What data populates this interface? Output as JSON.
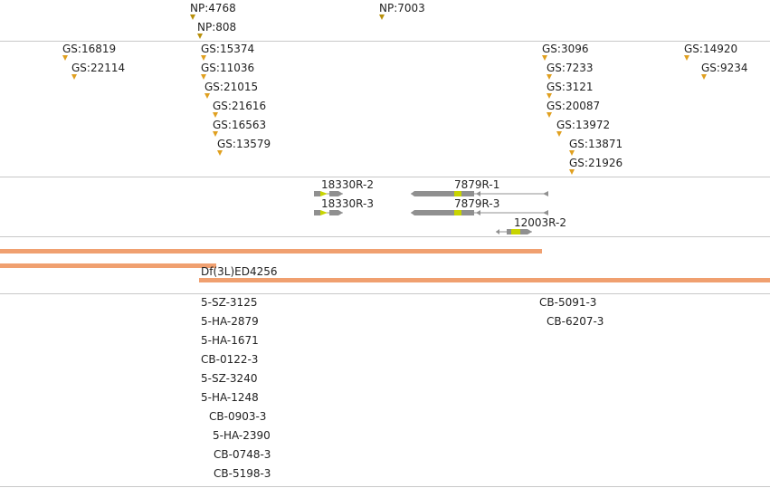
{
  "colors": {
    "np": "#b8900c",
    "gs": "#e0a020",
    "deficiency": "#f0a070",
    "insertion": "#e8684a",
    "gene_body": "#909090",
    "gene_exon": "#c8d400",
    "separator": "#c8c8c8"
  },
  "tracks": {
    "np": {
      "items": [
        {
          "label": "NP:4768"
        },
        {
          "label": "NP:808"
        },
        {
          "label": "NP:7003"
        }
      ]
    },
    "gs": {
      "items": [
        {
          "label": "GS:16819"
        },
        {
          "label": "GS:22114"
        },
        {
          "label": "GS:15374"
        },
        {
          "label": "GS:11036"
        },
        {
          "label": "GS:21015"
        },
        {
          "label": "GS:21616"
        },
        {
          "label": "GS:16563"
        },
        {
          "label": "GS:13579"
        },
        {
          "label": "GS:3096"
        },
        {
          "label": "GS:7233"
        },
        {
          "label": "GS:3121"
        },
        {
          "label": "GS:20087"
        },
        {
          "label": "GS:13972"
        },
        {
          "label": "GS:13871"
        },
        {
          "label": "GS:21926"
        },
        {
          "label": "GS:14920"
        },
        {
          "label": "GS:9234"
        }
      ]
    },
    "transcripts": {
      "items": [
        {
          "label": "18330R-2"
        },
        {
          "label": "18330R-3"
        },
        {
          "label": "7879R-1"
        },
        {
          "label": "7879R-3"
        },
        {
          "label": "12003R-2"
        }
      ]
    },
    "deficiencies": {
      "items": [
        {
          "label": ""
        },
        {
          "label": ""
        },
        {
          "label": "Df(3L)ED4256"
        }
      ]
    },
    "insertions": {
      "items": [
        {
          "label": "5-SZ-3125"
        },
        {
          "label": "5-HA-2879"
        },
        {
          "label": "5-HA-1671"
        },
        {
          "label": "CB-0122-3"
        },
        {
          "label": "5-SZ-3240"
        },
        {
          "label": "5-HA-1248"
        },
        {
          "label": "CB-0903-3"
        },
        {
          "label": "5-HA-2390"
        },
        {
          "label": "CB-0748-3"
        },
        {
          "label": "CB-5198-3"
        },
        {
          "label": "CB-5091-3"
        },
        {
          "label": "CB-6207-3"
        }
      ]
    }
  }
}
